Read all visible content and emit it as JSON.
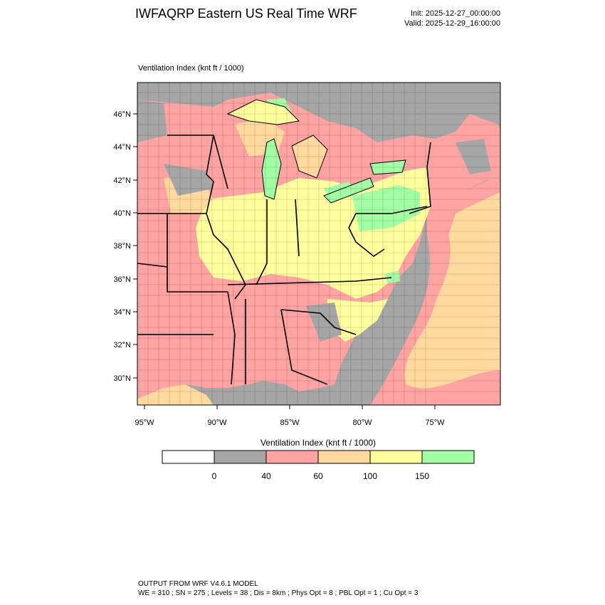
{
  "header": {
    "title": "IWFAQRP Eastern US Real Time WRF",
    "init": "Init: 2025-12-27_00:00:00",
    "valid": "Valid: 2025-12-29_16:00:00"
  },
  "field_label": "Ventilation Index   (knt ft / 1000)",
  "map": {
    "lat_labels": [
      "46°N",
      "44°N",
      "42°N",
      "40°N",
      "38°N",
      "36°N",
      "34°N",
      "32°N",
      "30°N"
    ],
    "lon_labels": [
      "95°W",
      "90°W",
      "85°W",
      "80°W",
      "75°W"
    ],
    "colors": {
      "ocean": "#a6a6a6",
      "land_low": "#ffa3a3",
      "land_mid": "#ffd99e",
      "land_high": "#ffff9e",
      "land_max": "#a3ffa3",
      "lines": "#000000"
    }
  },
  "colorbar": {
    "title": "Ventilation Index  (knt ft / 1000)",
    "levels": [
      "0",
      "40",
      "60",
      "100",
      "150"
    ],
    "bins": [
      {
        "color": "#ffffff"
      },
      {
        "color": "#a6a6a6"
      },
      {
        "color": "#ffa3a3"
      },
      {
        "color": "#ffd99e"
      },
      {
        "color": "#ffff9e"
      },
      {
        "color": "#a3ffa3"
      }
    ]
  },
  "footer": {
    "line1": "OUTPUT FROM WRF V4.6.1 MODEL",
    "line2": "WE = 310 ; SN = 275 ; Levels = 38 ; Dis = 8km ; Phys Opt = 8 ; PBL Opt = 1 ; Cu Opt = 3"
  }
}
